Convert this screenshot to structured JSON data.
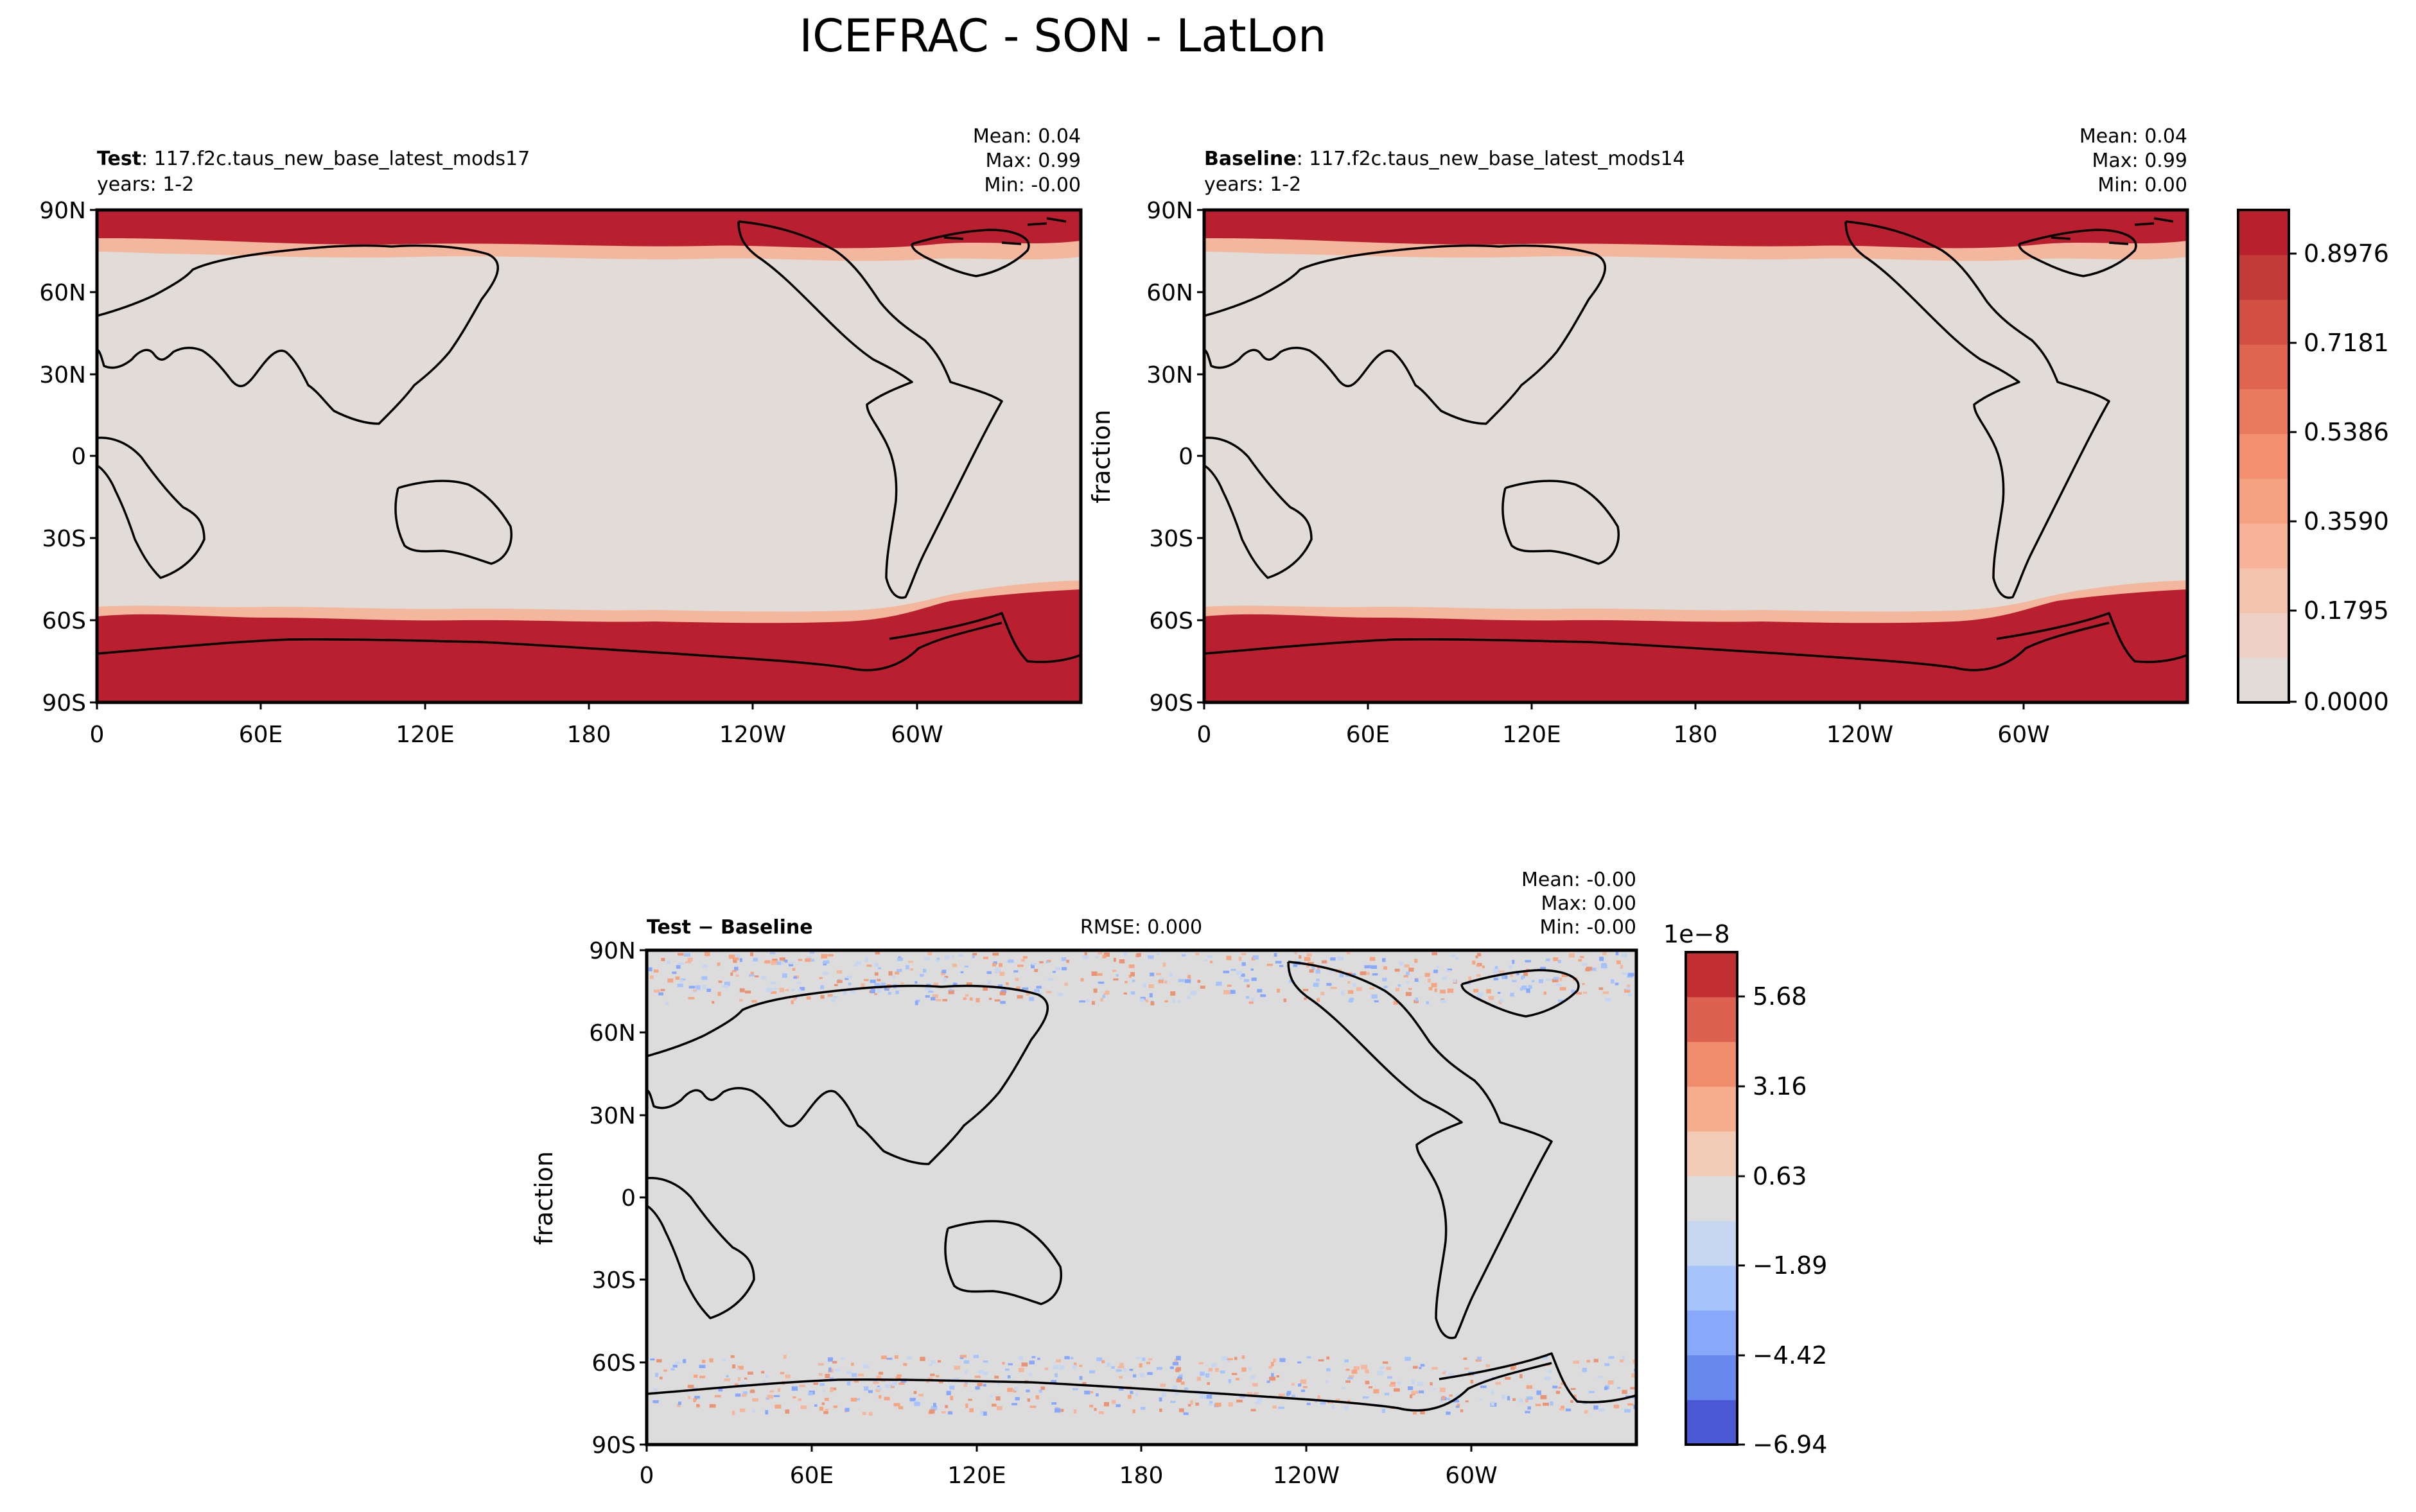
{
  "figure": {
    "title": "ICEFRAC - SON - LatLon"
  },
  "chart_data": [
    {
      "type": "heatmap",
      "panel": "test",
      "label_bold": "Test",
      "label_rest": ": 117.f2c.taus_new_base_latest_mods17",
      "years": "years: 1-2",
      "stats": [
        "Mean:  0.04",
        "Max:  0.99",
        "Min: -0.00"
      ],
      "ylabel": "",
      "xticks": [
        "0",
        "60E",
        "120E",
        "180",
        "120W",
        "60W"
      ],
      "yticks": [
        "90N",
        "60N",
        "30N",
        "0",
        "30S",
        "60S",
        "90S"
      ],
      "xlim": [
        0,
        360
      ],
      "ylim": [
        -90,
        90
      ],
      "field": "sea ice fraction (0-1), high values near both poles"
    },
    {
      "type": "heatmap",
      "panel": "baseline",
      "label_bold": "Baseline",
      "label_rest": ": 117.f2c.taus_new_base_latest_mods14",
      "years": "years: 1-2",
      "stats": [
        "Mean:  0.04",
        "Max:  0.99",
        "Min:  0.00"
      ],
      "ylabel": "fraction",
      "xticks": [
        "0",
        "60E",
        "120E",
        "180",
        "120W",
        "60W"
      ],
      "yticks": [
        "90N",
        "60N",
        "30N",
        "0",
        "30S",
        "60S",
        "90S"
      ],
      "xlim": [
        0,
        360
      ],
      "ylim": [
        -90,
        90
      ],
      "colorbar": {
        "ticks": [
          "0.8976",
          "0.7181",
          "0.5386",
          "0.3590",
          "0.1795",
          "0.0000"
        ],
        "levels": [
          0.0,
          0.0898,
          0.1795,
          0.2693,
          0.359,
          0.4488,
          0.5386,
          0.6283,
          0.7181,
          0.8078,
          0.8976,
          0.99
        ],
        "colors": [
          "#e2dcd8",
          "#efd0c4",
          "#f4c3ae",
          "#f6b398",
          "#f5a283",
          "#f2906f",
          "#ea7b5f",
          "#e0654f",
          "#d14e42",
          "#c43a38",
          "#b9202e"
        ]
      }
    },
    {
      "type": "heatmap",
      "panel": "difference",
      "label_bold": "Test − Baseline",
      "rmse": "RMSE: 0.000",
      "stats": [
        "Mean: -0.00",
        "Max:  0.00",
        "Min: -0.00"
      ],
      "ylabel": "fraction",
      "xticks": [
        "0",
        "60E",
        "120E",
        "180",
        "120W",
        "60W"
      ],
      "yticks": [
        "90N",
        "60N",
        "30N",
        "0",
        "30S",
        "60S",
        "90S"
      ],
      "xlim": [
        0,
        360
      ],
      "ylim": [
        -90,
        90
      ],
      "colorbar": {
        "scale_label": "1e−8",
        "ticks": [
          "5.68",
          "3.16",
          "0.63",
          "−1.89",
          "−4.42",
          "−6.94"
        ],
        "colors": [
          "#4a58d4",
          "#6788ec",
          "#87a8fb",
          "#a7c3fb",
          "#c7d6f0",
          "#dcdcdc",
          "#f2cbb7",
          "#f6ae8e",
          "#f08d6d",
          "#dc6150",
          "#c12f32"
        ]
      }
    }
  ]
}
